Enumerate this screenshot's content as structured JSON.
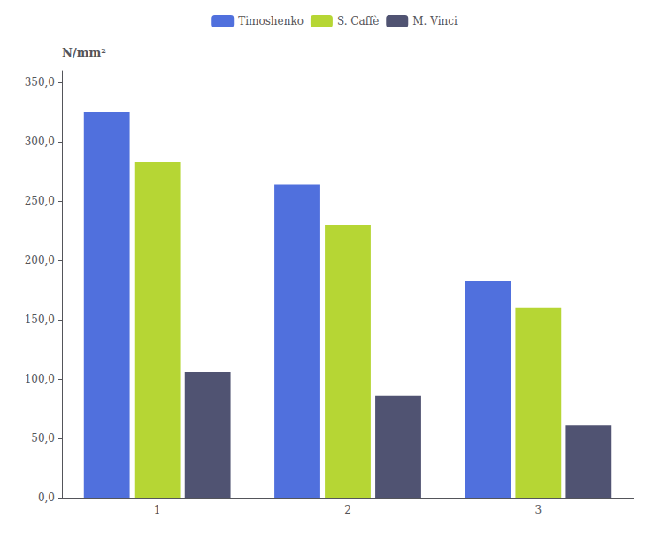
{
  "chart_data": {
    "type": "bar",
    "categories": [
      "1",
      "2",
      "3"
    ],
    "series": [
      {
        "name": "Timoshenko",
        "values": [
          325,
          264,
          183
        ]
      },
      {
        "name": "S. Caffè",
        "values": [
          283,
          230,
          160
        ]
      },
      {
        "name": "M. Vinci",
        "values": [
          106,
          86,
          61
        ]
      }
    ],
    "ylabel": "N/mm²",
    "ylim": [
      0,
      360
    ],
    "yticks": [
      {
        "value": 0,
        "label": "0,0"
      },
      {
        "value": 50,
        "label": "50,0"
      },
      {
        "value": 100,
        "label": "100,0"
      },
      {
        "value": 150,
        "label": "150,0"
      },
      {
        "value": 200,
        "label": "200,0"
      },
      {
        "value": 250,
        "label": "250,0"
      },
      {
        "value": 300,
        "label": "300,0"
      },
      {
        "value": 350,
        "label": "350,0"
      }
    ],
    "grid": false,
    "legend": "top"
  }
}
